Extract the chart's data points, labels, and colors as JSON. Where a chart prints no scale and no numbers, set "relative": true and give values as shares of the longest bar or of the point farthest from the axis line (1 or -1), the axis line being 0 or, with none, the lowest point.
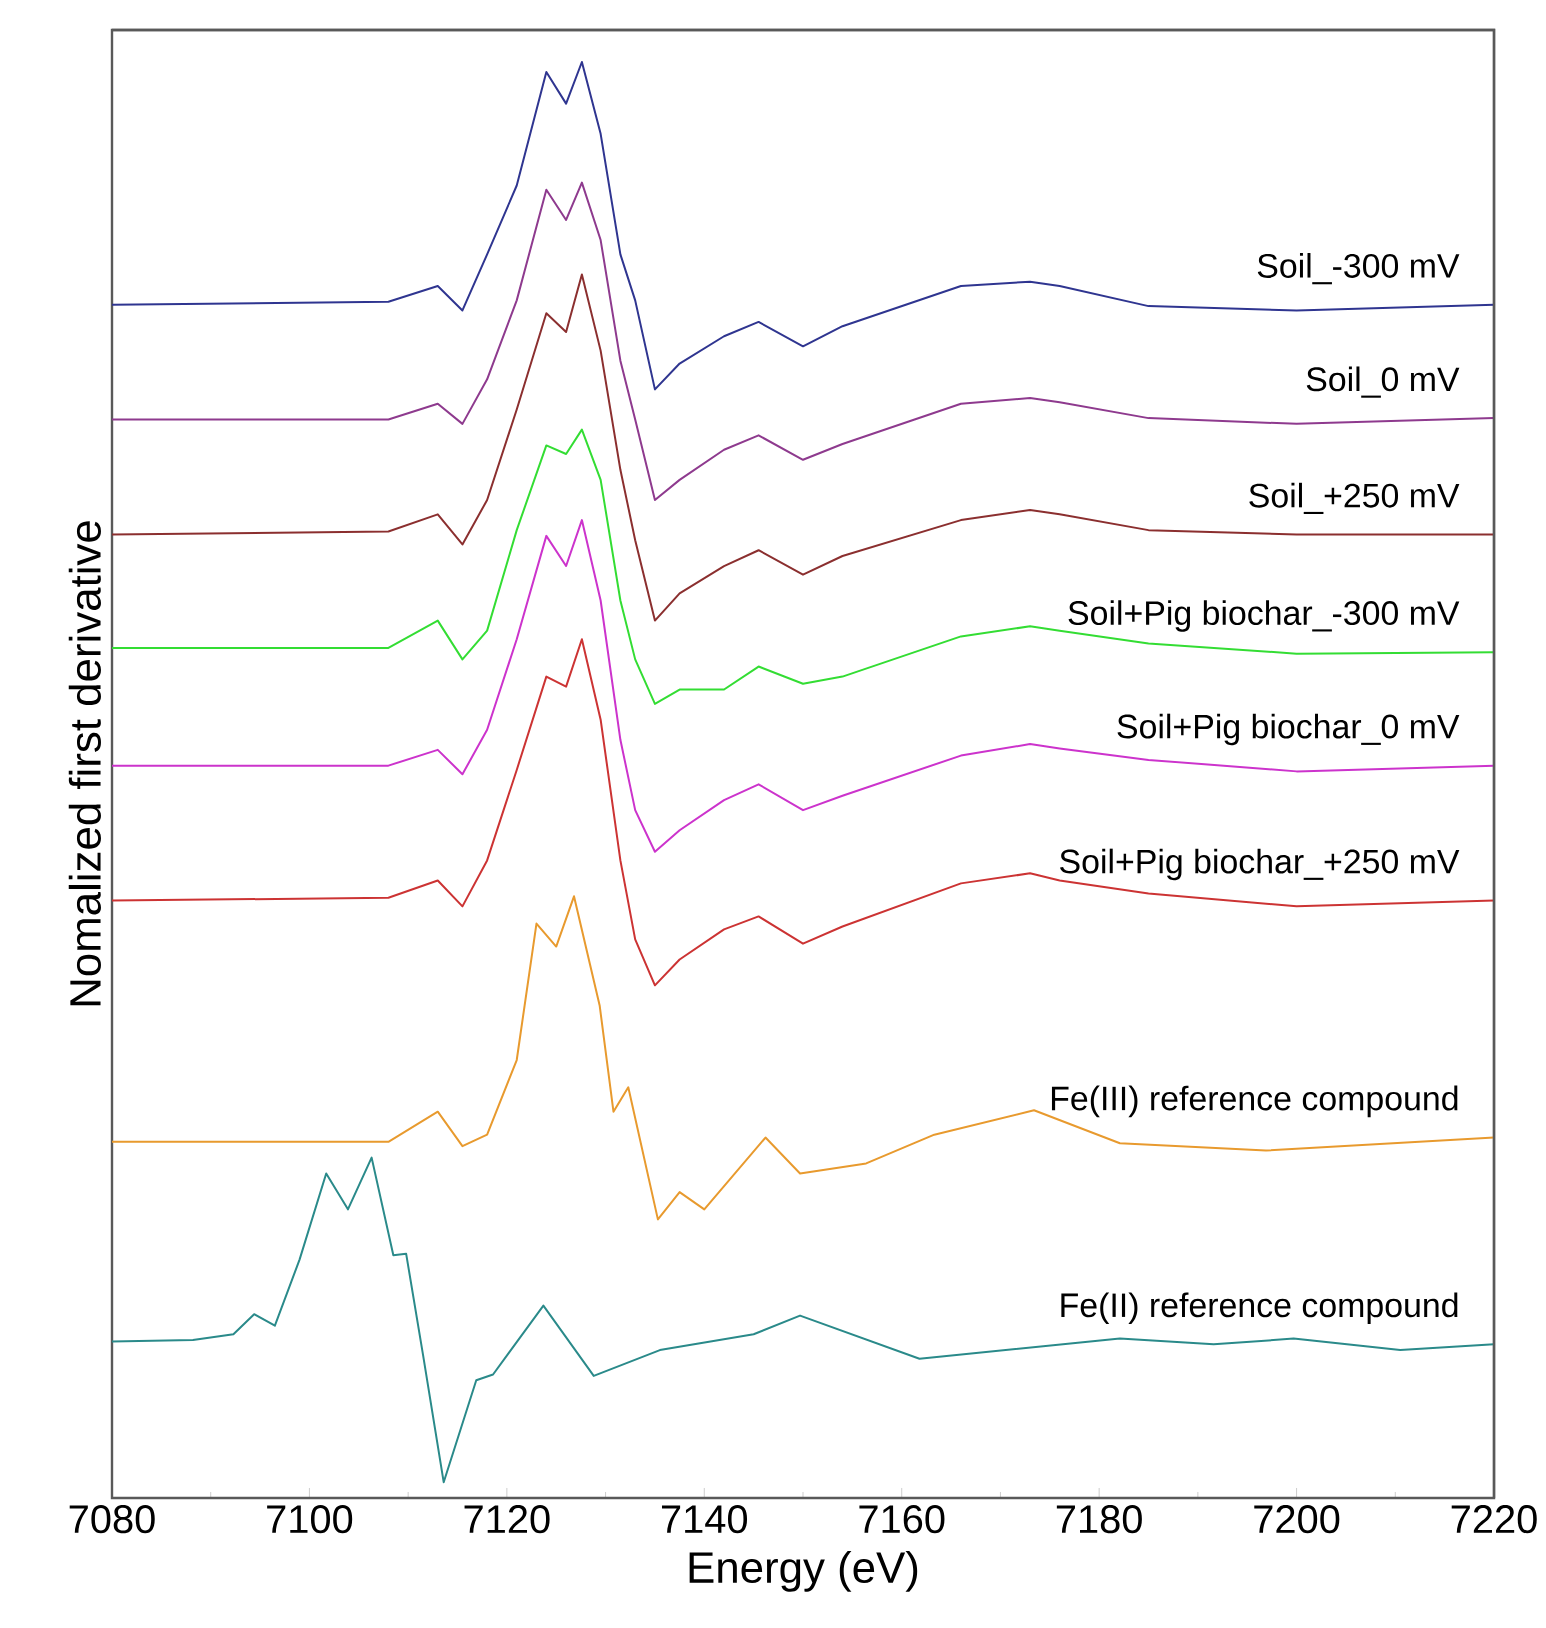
{
  "chart_data": {
    "type": "line",
    "relative": true,
    "xlabel": "Energy (eV)",
    "ylabel": "Nomalized first derivative",
    "xlim": [
      7080,
      7220
    ],
    "xticks": [
      7080,
      7100,
      7120,
      7140,
      7160,
      7180,
      7200,
      7220
    ],
    "x": [
      7080,
      7108,
      7113,
      7115.5,
      7118,
      7121,
      7124,
      7126,
      7127.6,
      7129.5,
      7131.5,
      7133,
      7135,
      7137.5,
      7142,
      7145.5,
      7150,
      7154,
      7166,
      7173,
      7176,
      7185,
      7200,
      7220
    ],
    "series": [
      {
        "name": "Soil_-300 mV",
        "color": "#2f3590",
        "values": [
          0.831,
          0.833,
          0.844,
          0.827,
          0.866,
          0.914,
          0.993,
          0.971,
          1.0,
          0.95,
          0.866,
          0.834,
          0.772,
          0.79,
          0.809,
          0.819,
          0.802,
          0.816,
          0.844,
          0.847,
          0.844,
          0.83,
          0.827,
          0.831
        ]
      },
      {
        "name": "Soil_0 mV",
        "color": "#8e3a8e",
        "values": [
          0.751,
          0.751,
          0.762,
          0.748,
          0.779,
          0.834,
          0.911,
          0.89,
          0.916,
          0.876,
          0.792,
          0.751,
          0.695,
          0.709,
          0.73,
          0.74,
          0.723,
          0.734,
          0.762,
          0.766,
          0.763,
          0.752,
          0.748,
          0.752
        ]
      },
      {
        "name": "Soil_+250 mV",
        "color": "#8b2f2f",
        "values": [
          0.671,
          0.673,
          0.685,
          0.664,
          0.695,
          0.758,
          0.825,
          0.812,
          0.852,
          0.799,
          0.716,
          0.667,
          0.611,
          0.63,
          0.649,
          0.66,
          0.643,
          0.656,
          0.681,
          0.688,
          0.685,
          0.674,
          0.671,
          0.671
        ]
      },
      {
        "name": "Soil+Pig biochar_-300 mV",
        "color": "#33dd33",
        "values": [
          0.592,
          0.592,
          0.611,
          0.584,
          0.604,
          0.674,
          0.733,
          0.727,
          0.744,
          0.709,
          0.625,
          0.584,
          0.553,
          0.563,
          0.563,
          0.579,
          0.567,
          0.572,
          0.6,
          0.607,
          0.604,
          0.595,
          0.588,
          0.589
        ]
      },
      {
        "name": "Soil+Pig biochar_0 mV",
        "color": "#cc33cc",
        "values": [
          0.51,
          0.51,
          0.521,
          0.504,
          0.535,
          0.598,
          0.67,
          0.649,
          0.681,
          0.625,
          0.528,
          0.479,
          0.45,
          0.465,
          0.486,
          0.497,
          0.479,
          0.489,
          0.517,
          0.525,
          0.522,
          0.514,
          0.506,
          0.51
        ]
      },
      {
        "name": "Soil+Pig biochar_+250 mV",
        "color": "#cc3333",
        "values": [
          0.416,
          0.418,
          0.43,
          0.412,
          0.444,
          0.507,
          0.572,
          0.565,
          0.598,
          0.542,
          0.444,
          0.389,
          0.357,
          0.375,
          0.396,
          0.405,
          0.386,
          0.398,
          0.428,
          0.435,
          0.43,
          0.421,
          0.412,
          0.416
        ]
      },
      {
        "name": "Fe(III) reference compound",
        "color": "#e89a2e",
        "x": [
          7080,
          7108,
          7113,
          7115.5,
          7118,
          7121,
          7123,
          7125,
          7126.8,
          7129.4,
          7130.8,
          7132.3,
          7135.3,
          7137.5,
          7140,
          7146.2,
          7149.7,
          7156.4,
          7163.3,
          7173.4,
          7182.1,
          7196.9,
          7220
        ],
        "values": [
          0.248,
          0.248,
          0.269,
          0.245,
          0.253,
          0.305,
          0.4,
          0.384,
          0.419,
          0.343,
          0.269,
          0.286,
          0.194,
          0.213,
          0.201,
          0.251,
          0.226,
          0.233,
          0.253,
          0.27,
          0.247,
          0.242,
          0.251
        ]
      },
      {
        "name": "Fe(II) reference compound",
        "color": "#2a8a8a",
        "x": [
          7080,
          7088.2,
          7092.3,
          7094.4,
          7096.5,
          7099,
          7101.7,
          7103.9,
          7106.3,
          7108.5,
          7109.8,
          7111.5,
          7113.6,
          7116.9,
          7118.6,
          7123.7,
          7128.8,
          7135.5,
          7145,
          7149.7,
          7161.8,
          7182.1,
          7191.6,
          7199.7,
          7210.5,
          7220
        ],
        "values": [
          0.109,
          0.11,
          0.114,
          0.128,
          0.12,
          0.166,
          0.226,
          0.201,
          0.237,
          0.169,
          0.17,
          0.1,
          0.011,
          0.082,
          0.086,
          0.134,
          0.085,
          0.103,
          0.114,
          0.127,
          0.097,
          0.111,
          0.107,
          0.111,
          0.103,
          0.107
        ]
      }
    ]
  }
}
